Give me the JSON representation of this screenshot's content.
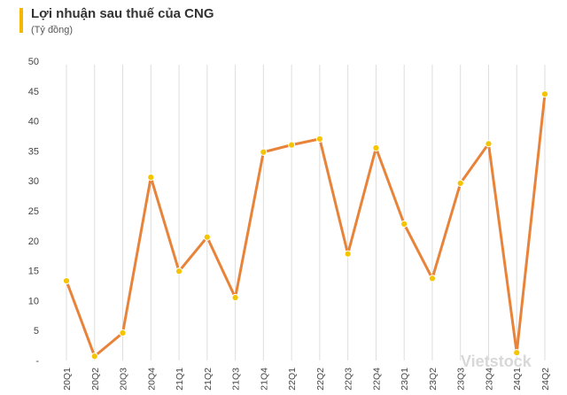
{
  "chart_data": {
    "type": "line",
    "title": "Lợi nhuận sau thuế của CNG",
    "subtitle": "(Tỷ đồng)",
    "categories": [
      "20Q1",
      "20Q2",
      "20Q3",
      "20Q4",
      "21Q1",
      "21Q2",
      "21Q3",
      "21Q4",
      "22Q1",
      "22Q2",
      "22Q3",
      "22Q4",
      "23Q1",
      "23Q2",
      "23Q3",
      "23Q4",
      "24Q1",
      "24Q2"
    ],
    "series": [
      {
        "values": [
          13.3,
          0.7,
          4.6,
          30.6,
          14.9,
          20.6,
          10.5,
          34.8,
          36.0,
          37.0,
          17.8,
          35.5,
          22.8,
          13.7,
          29.6,
          36.2,
          1.3,
          44.5
        ]
      }
    ],
    "ylim": [
      0,
      50
    ],
    "yticks": [
      0,
      5,
      10,
      15,
      20,
      25,
      30,
      35,
      40,
      45,
      50
    ],
    "ytick_labels": [
      "-",
      "5",
      "10",
      "15",
      "20",
      "25",
      "30",
      "35",
      "40",
      "45",
      "50"
    ],
    "grid": "vertical",
    "colors": {
      "line": "#e8833a",
      "marker": "#f5c400",
      "grid": "#dddddd",
      "accent": "#f5b800"
    },
    "watermark": "Vietstock"
  }
}
